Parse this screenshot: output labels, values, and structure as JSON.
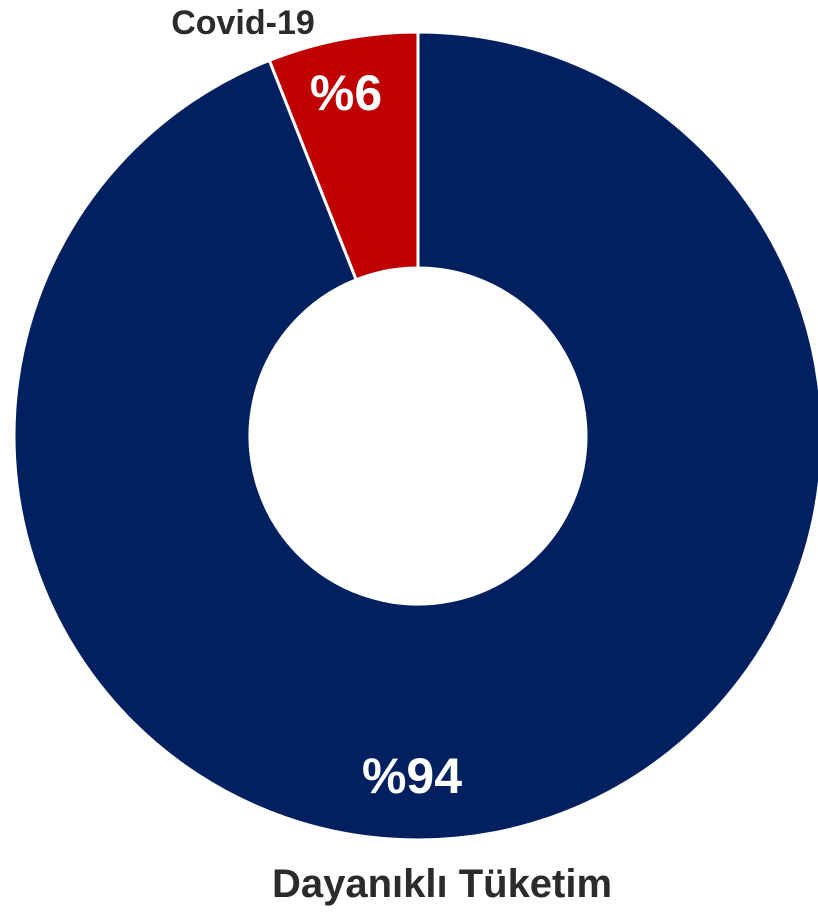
{
  "chart_data": {
    "type": "pie",
    "donut": true,
    "categories": [
      "Covid-19",
      "Dayanıklı Tüketim"
    ],
    "values": [
      6,
      94
    ],
    "labels": [
      "%6",
      "%94"
    ],
    "colors": [
      "#C00000",
      "#002060"
    ],
    "label_color": "#ffffff",
    "category_label_color": "#2b2b2b",
    "legend": "none"
  }
}
